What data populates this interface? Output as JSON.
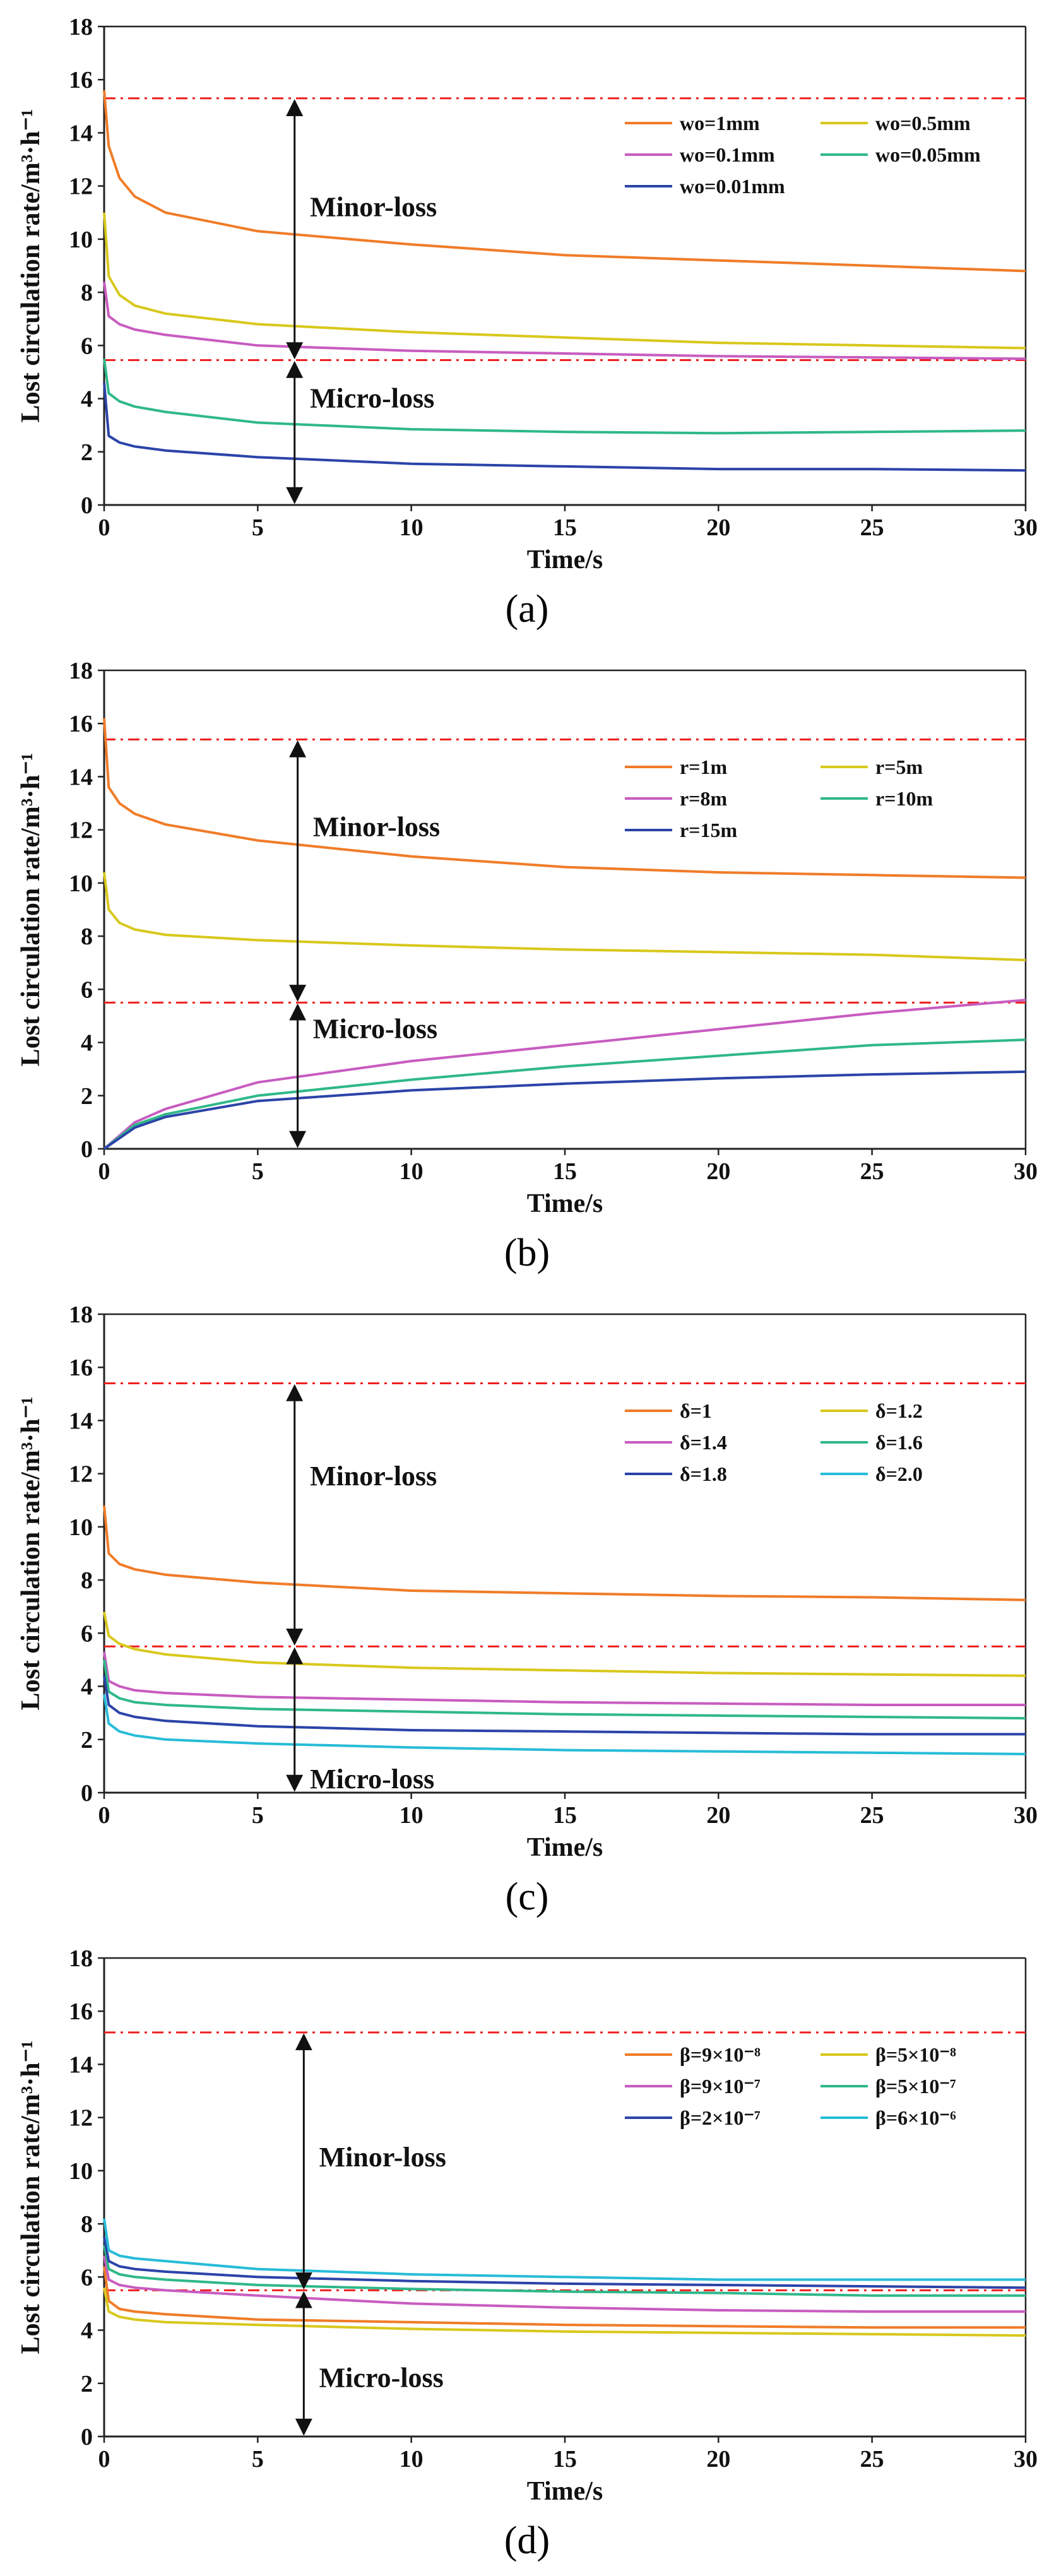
{
  "figure": {
    "chart_data": [
      {
        "type": "line",
        "label": "(a)",
        "xlabel": "Time/s",
        "ylabel": "Lost circulation rate/m³·h⁻¹",
        "xlim": [
          0,
          30
        ],
        "ylim": [
          0,
          18
        ],
        "xticks": [
          0,
          5,
          10,
          15,
          20,
          25,
          30
        ],
        "yticks": [
          0,
          2,
          4,
          6,
          8,
          10,
          12,
          14,
          16,
          18
        ],
        "reference_lines": [
          15.3,
          5.45
        ],
        "arrow_x": 6.2,
        "arrow_range": [
          0,
          15.3
        ],
        "minor_label": "Minor-loss",
        "micro_label": "Micro-loss",
        "minor_y": 11.2,
        "micro_y": 4.0,
        "label_x": 6.7,
        "series": [
          {
            "name": "wo=1mm",
            "color": "#f07c28",
            "x": [
              0,
              0.15,
              0.5,
              1,
              2,
              5,
              10,
              15,
              20,
              25,
              30
            ],
            "values": [
              15.6,
              13.5,
              12.3,
              11.6,
              11.0,
              10.3,
              9.8,
              9.4,
              9.2,
              9.0,
              8.8
            ]
          },
          {
            "name": "wo=0.5mm",
            "color": "#d8c81c",
            "x": [
              0,
              0.15,
              0.5,
              1,
              2,
              5,
              10,
              15,
              20,
              25,
              30
            ],
            "values": [
              11.0,
              8.6,
              7.9,
              7.5,
              7.2,
              6.8,
              6.5,
              6.3,
              6.1,
              6.0,
              5.9
            ]
          },
          {
            "name": "wo=0.1mm",
            "color": "#c85cc0",
            "x": [
              0,
              0.15,
              0.5,
              1,
              2,
              5,
              10,
              15,
              20,
              25,
              30
            ],
            "values": [
              8.4,
              7.1,
              6.8,
              6.6,
              6.4,
              6.0,
              5.8,
              5.7,
              5.6,
              5.55,
              5.5
            ]
          },
          {
            "name": "wo=0.05mm",
            "color": "#2fb889",
            "x": [
              0,
              0.15,
              0.5,
              1,
              2,
              5,
              10,
              15,
              20,
              25,
              30
            ],
            "values": [
              5.5,
              4.2,
              3.9,
              3.7,
              3.5,
              3.1,
              2.85,
              2.75,
              2.7,
              2.75,
              2.8
            ]
          },
          {
            "name": "wo=0.01mm",
            "color": "#2b44a8",
            "x": [
              0,
              0.15,
              0.5,
              1,
              2,
              5,
              10,
              15,
              20,
              25,
              30
            ],
            "values": [
              4.6,
              2.6,
              2.35,
              2.2,
              2.05,
              1.8,
              1.55,
              1.45,
              1.35,
              1.35,
              1.3
            ]
          }
        ]
      },
      {
        "type": "line",
        "label": "(b)",
        "xlabel": "Time/s",
        "ylabel": "Lost circulation rate/m³·h⁻¹",
        "xlim": [
          0,
          30
        ],
        "ylim": [
          0,
          18
        ],
        "xticks": [
          0,
          5,
          10,
          15,
          20,
          25,
          30
        ],
        "yticks": [
          0,
          2,
          4,
          6,
          8,
          10,
          12,
          14,
          16,
          18
        ],
        "reference_lines": [
          15.4,
          5.5
        ],
        "arrow_x": 6.3,
        "arrow_range": [
          0,
          15.4
        ],
        "minor_label": "Minor-loss",
        "micro_label": "Micro-loss",
        "minor_y": 12.1,
        "micro_y": 4.5,
        "label_x": 6.8,
        "series": [
          {
            "name": "r=1m",
            "color": "#f07c28",
            "x": [
              0,
              0.15,
              0.5,
              1,
              2,
              5,
              10,
              15,
              20,
              25,
              30
            ],
            "values": [
              16.2,
              13.6,
              13.0,
              12.6,
              12.2,
              11.6,
              11.0,
              10.6,
              10.4,
              10.3,
              10.2
            ]
          },
          {
            "name": "r=5m",
            "color": "#d8c81c",
            "x": [
              0,
              0.15,
              0.5,
              1,
              2,
              5,
              10,
              15,
              20,
              25,
              30
            ],
            "values": [
              10.4,
              9.0,
              8.5,
              8.25,
              8.05,
              7.85,
              7.65,
              7.5,
              7.4,
              7.3,
              7.1
            ]
          },
          {
            "name": "r=8m",
            "color": "#c85cc0",
            "x": [
              0,
              1,
              2,
              5,
              10,
              15,
              20,
              25,
              30
            ],
            "values": [
              0,
              1.0,
              1.5,
              2.5,
              3.3,
              3.9,
              4.5,
              5.1,
              5.6
            ]
          },
          {
            "name": "r=10m",
            "color": "#2fb889",
            "x": [
              0,
              1,
              2,
              5,
              10,
              15,
              20,
              25,
              30
            ],
            "values": [
              0,
              0.9,
              1.3,
              2.0,
              2.6,
              3.1,
              3.5,
              3.9,
              4.1
            ]
          },
          {
            "name": "r=15m",
            "color": "#2b44a8",
            "x": [
              0,
              1,
              2,
              5,
              10,
              15,
              20,
              25,
              30
            ],
            "values": [
              0,
              0.8,
              1.2,
              1.8,
              2.2,
              2.45,
              2.65,
              2.8,
              2.9
            ]
          }
        ]
      },
      {
        "type": "line",
        "label": "(c)",
        "xlabel": "Time/s",
        "ylabel": "Lost circulation rate/m³·h⁻¹",
        "xlim": [
          0,
          30
        ],
        "ylim": [
          0,
          18
        ],
        "xticks": [
          0,
          5,
          10,
          15,
          20,
          25,
          30
        ],
        "yticks": [
          0,
          2,
          4,
          6,
          8,
          10,
          12,
          14,
          16,
          18
        ],
        "reference_lines": [
          15.4,
          5.5
        ],
        "arrow_x": 6.2,
        "arrow_range": [
          0,
          15.4
        ],
        "minor_label": "Minor-loss",
        "micro_label": "Micro-loss",
        "minor_y": 11.9,
        "micro_y": 0.5,
        "label_x": 6.7,
        "series": [
          {
            "name": "δ=1",
            "color": "#f07c28",
            "x": [
              0,
              0.15,
              0.5,
              1,
              2,
              5,
              10,
              15,
              20,
              25,
              30
            ],
            "values": [
              10.8,
              9.0,
              8.6,
              8.4,
              8.2,
              7.9,
              7.6,
              7.5,
              7.4,
              7.35,
              7.25
            ]
          },
          {
            "name": "δ=1.2",
            "color": "#d8c81c",
            "x": [
              0,
              0.15,
              0.5,
              1,
              2,
              5,
              10,
              15,
              20,
              25,
              30
            ],
            "values": [
              6.8,
              5.9,
              5.6,
              5.4,
              5.2,
              4.9,
              4.7,
              4.6,
              4.5,
              4.45,
              4.4
            ]
          },
          {
            "name": "δ=1.4",
            "color": "#c85cc0",
            "x": [
              0,
              0.15,
              0.5,
              1,
              2,
              5,
              10,
              15,
              20,
              25,
              30
            ],
            "values": [
              5.3,
              4.2,
              4.0,
              3.85,
              3.75,
              3.6,
              3.5,
              3.4,
              3.35,
              3.3,
              3.3
            ]
          },
          {
            "name": "δ=1.6",
            "color": "#2fb889",
            "x": [
              0,
              0.15,
              0.5,
              1,
              2,
              5,
              10,
              15,
              20,
              25,
              30
            ],
            "values": [
              5.0,
              3.8,
              3.55,
              3.4,
              3.3,
              3.15,
              3.05,
              2.95,
              2.9,
              2.85,
              2.8
            ]
          },
          {
            "name": "δ=1.8",
            "color": "#2b44a8",
            "x": [
              0,
              0.15,
              0.5,
              1,
              2,
              5,
              10,
              15,
              20,
              25,
              30
            ],
            "values": [
              4.4,
              3.3,
              3.0,
              2.85,
              2.7,
              2.5,
              2.35,
              2.3,
              2.25,
              2.2,
              2.2
            ]
          },
          {
            "name": "δ=2.0",
            "color": "#27bcd8",
            "x": [
              0,
              0.15,
              0.5,
              1,
              2,
              5,
              10,
              15,
              20,
              25,
              30
            ],
            "values": [
              3.7,
              2.6,
              2.3,
              2.15,
              2.0,
              1.85,
              1.7,
              1.6,
              1.55,
              1.5,
              1.45
            ]
          }
        ]
      },
      {
        "type": "line",
        "label": "(d)",
        "xlabel": "Time/s",
        "ylabel": "Lost circulation rate/m³·h⁻¹",
        "xlim": [
          0,
          30
        ],
        "ylim": [
          0,
          18
        ],
        "xticks": [
          0,
          5,
          10,
          15,
          20,
          25,
          30
        ],
        "yticks": [
          0,
          2,
          4,
          6,
          8,
          10,
          12,
          14,
          16,
          18
        ],
        "reference_lines": [
          15.2,
          5.5
        ],
        "arrow_x": 6.5,
        "arrow_range": [
          0,
          15.2
        ],
        "minor_label": "Minor-loss",
        "micro_label": "Micro-loss",
        "minor_y": 10.5,
        "micro_y": 2.2,
        "label_x": 7.0,
        "series": [
          {
            "name": "β=9×10⁻⁸",
            "color": "#f07c28",
            "x": [
              0,
              0.15,
              0.5,
              1,
              2,
              5,
              10,
              15,
              20,
              25,
              30
            ],
            "values": [
              6.4,
              5.1,
              4.8,
              4.7,
              4.6,
              4.4,
              4.3,
              4.2,
              4.15,
              4.1,
              4.1
            ]
          },
          {
            "name": "β=5×10⁻⁸",
            "color": "#d8c81c",
            "x": [
              0,
              0.15,
              0.5,
              1,
              2,
              5,
              10,
              15,
              20,
              25,
              30
            ],
            "values": [
              5.6,
              4.7,
              4.5,
              4.4,
              4.3,
              4.2,
              4.05,
              3.95,
              3.9,
              3.85,
              3.8
            ]
          },
          {
            "name": "β=9×10⁻⁷",
            "color": "#c85cc0",
            "x": [
              0,
              0.15,
              0.5,
              1,
              2,
              5,
              10,
              15,
              20,
              25,
              30
            ],
            "values": [
              6.8,
              5.9,
              5.7,
              5.6,
              5.5,
              5.3,
              5.0,
              4.85,
              4.75,
              4.7,
              4.7
            ]
          },
          {
            "name": "β=5×10⁻⁷",
            "color": "#2fb889",
            "x": [
              0,
              0.15,
              0.5,
              1,
              2,
              5,
              10,
              15,
              20,
              25,
              30
            ],
            "values": [
              7.2,
              6.3,
              6.1,
              6.0,
              5.9,
              5.7,
              5.55,
              5.45,
              5.4,
              5.3,
              5.3
            ]
          },
          {
            "name": "β=2×10⁻⁷",
            "color": "#2b44a8",
            "x": [
              0,
              0.15,
              0.5,
              1,
              2,
              5,
              10,
              15,
              20,
              25,
              30
            ],
            "values": [
              7.5,
              6.6,
              6.4,
              6.3,
              6.2,
              6.0,
              5.85,
              5.75,
              5.7,
              5.65,
              5.6
            ]
          },
          {
            "name": "β=6×10⁻⁶",
            "color": "#27bcd8",
            "x": [
              0,
              0.15,
              0.5,
              1,
              2,
              5,
              10,
              15,
              20,
              25,
              30
            ],
            "values": [
              8.2,
              7.0,
              6.8,
              6.7,
              6.6,
              6.3,
              6.1,
              6.0,
              5.9,
              5.9,
              5.9
            ]
          }
        ]
      }
    ]
  }
}
